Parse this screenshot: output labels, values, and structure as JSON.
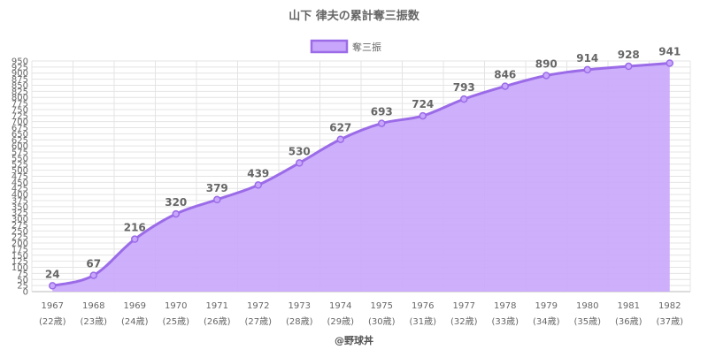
{
  "chart_data": {
    "type": "area",
    "title": "山下 律夫の累計奪三振数",
    "legend": {
      "label": "奪三振",
      "position": "top"
    },
    "credit": "@野球丼",
    "categories": [
      "1967",
      "1968",
      "1969",
      "1970",
      "1971",
      "1972",
      "1973",
      "1974",
      "1975",
      "1976",
      "1977",
      "1978",
      "1979",
      "1980",
      "1981",
      "1982"
    ],
    "sublabels": [
      "(22歳)",
      "(23歳)",
      "(24歳)",
      "(25歳)",
      "(26歳)",
      "(27歳)",
      "(28歳)",
      "(29歳)",
      "(30歳)",
      "(31歳)",
      "(32歳)",
      "(33歳)",
      "(34歳)",
      "(35歳)",
      "(36歳)",
      "(37歳)"
    ],
    "series": [
      {
        "name": "奪三振",
        "values": [
          24,
          67,
          216,
          320,
          379,
          439,
          530,
          627,
          693,
          724,
          793,
          846,
          890,
          914,
          928,
          941
        ]
      }
    ],
    "ylim": [
      0,
      950
    ],
    "ytick_step": 25,
    "grid": true,
    "colors": {
      "line": "#9b6be8",
      "fill": "#c8a6fb",
      "point": "#c8a6fb",
      "grid": "#e4e4e4",
      "text": "#666666"
    }
  }
}
